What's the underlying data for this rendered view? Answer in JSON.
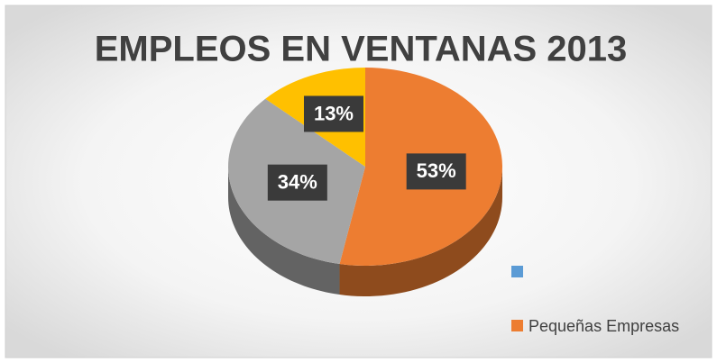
{
  "chart_data": {
    "type": "pie",
    "title": "EMPLEOS EN VENTANAS 2013",
    "values": [
      53,
      34,
      13
    ],
    "value_labels": [
      "53%",
      "34%",
      "13%"
    ],
    "colors": [
      "#ed7d31",
      "#a5a5a5",
      "#ffc000"
    ],
    "legend": [
      {
        "color": "#5b9bd5",
        "label": null
      },
      {
        "color": "#ed7d31",
        "label": "Pequeñas Empresas"
      }
    ]
  }
}
